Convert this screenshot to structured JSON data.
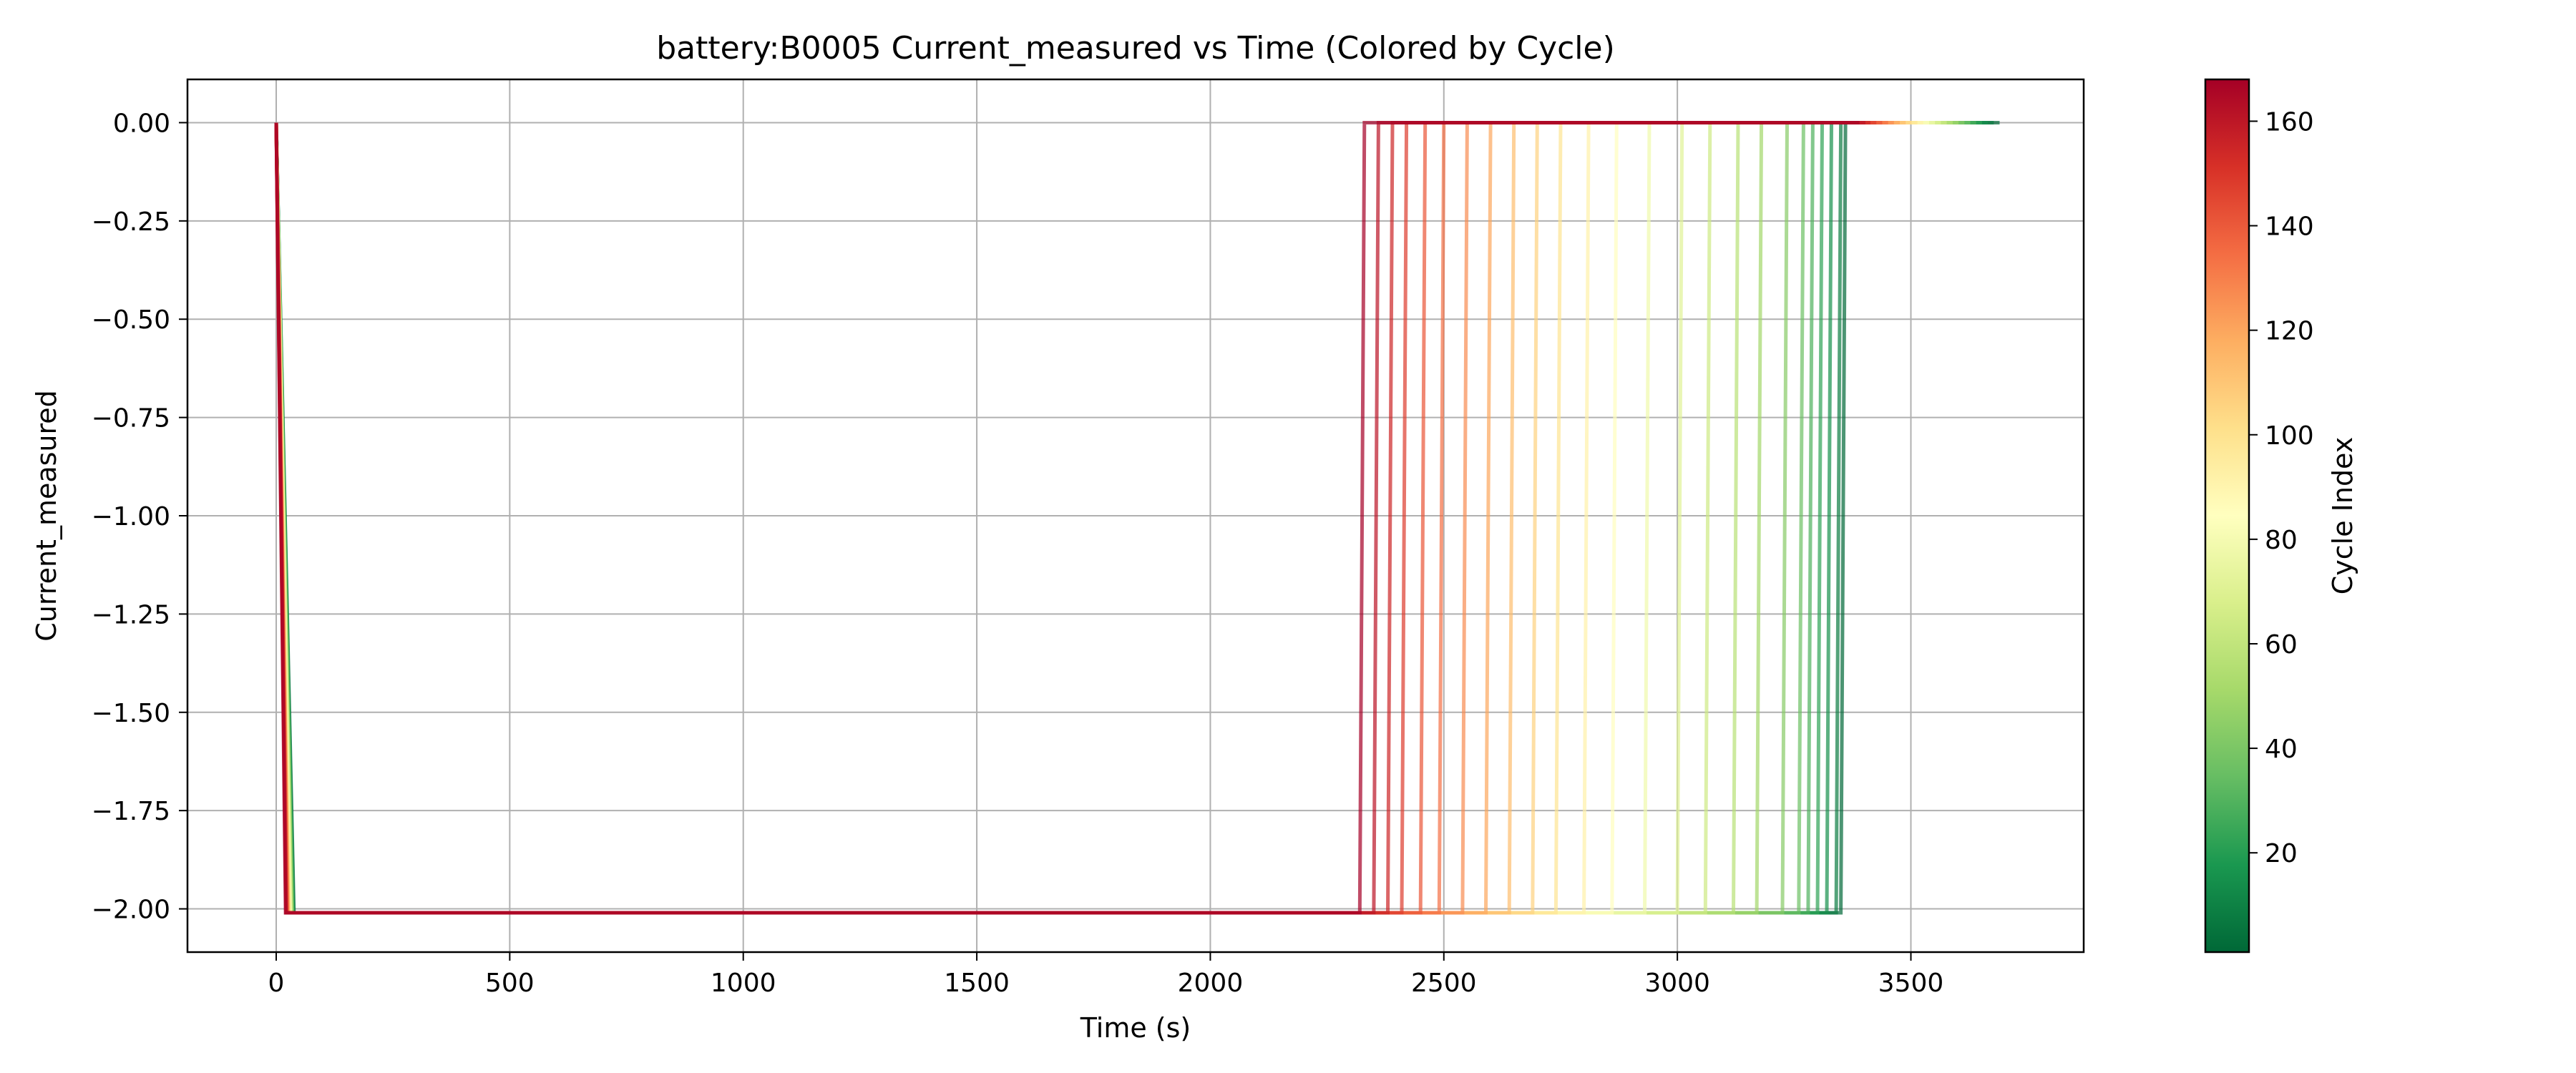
{
  "chart_data": {
    "type": "line",
    "title": "battery:B0005 Current_measured vs Time (Colored by Cycle)",
    "xlabel": "Time (s)",
    "ylabel": "Current_measured",
    "xlim": [
      -190,
      3870
    ],
    "ylim": [
      -2.11,
      0.11
    ],
    "xticks": [
      0,
      500,
      1000,
      1500,
      2000,
      2500,
      3000,
      3500
    ],
    "yticks": [
      0.0,
      -0.25,
      -0.5,
      -0.75,
      -1.0,
      -1.25,
      -1.5,
      -1.75,
      -2.0
    ],
    "xtick_labels": [
      "0",
      "500",
      "1000",
      "1500",
      "2000",
      "2500",
      "3000",
      "3500"
    ],
    "ytick_labels": [
      "0.00",
      "−0.25",
      "−0.50",
      "−0.75",
      "−1.00",
      "−1.25",
      "−1.50",
      "−1.75",
      "−2.00"
    ],
    "grid": true,
    "colorbar": {
      "label": "Cycle Index",
      "min": 1,
      "max": 168,
      "ticks": [
        20,
        40,
        60,
        80,
        100,
        120,
        140,
        160
      ],
      "tick_labels": [
        "20",
        "40",
        "60",
        "80",
        "100",
        "120",
        "140",
        "160"
      ],
      "colormap": "RdYlGn_r",
      "colors": [
        "#006837",
        "#1a9850",
        "#66bd63",
        "#a6d96a",
        "#d9ef8b",
        "#ffffbf",
        "#fee08b",
        "#fdae61",
        "#f46d43",
        "#d73027",
        "#a50026"
      ]
    },
    "series_profile": {
      "start_time": 0,
      "start_current": 0.0,
      "ramp_end_time": 20,
      "discharge_current": -2.01,
      "recovery_current": 0.0,
      "end_time": 3690
    },
    "series": [
      {
        "cycle": 1,
        "discharge_end_time": 3350
      },
      {
        "cycle": 8,
        "discharge_end_time": 3340
      },
      {
        "cycle": 15,
        "discharge_end_time": 3320
      },
      {
        "cycle": 22,
        "discharge_end_time": 3300
      },
      {
        "cycle": 29,
        "discharge_end_time": 3280
      },
      {
        "cycle": 36,
        "discharge_end_time": 3260
      },
      {
        "cycle": 43,
        "discharge_end_time": 3225
      },
      {
        "cycle": 50,
        "discharge_end_time": 3170
      },
      {
        "cycle": 57,
        "discharge_end_time": 3120
      },
      {
        "cycle": 64,
        "discharge_end_time": 3060
      },
      {
        "cycle": 71,
        "discharge_end_time": 3000
      },
      {
        "cycle": 78,
        "discharge_end_time": 2930
      },
      {
        "cycle": 85,
        "discharge_end_time": 2860
      },
      {
        "cycle": 92,
        "discharge_end_time": 2800
      },
      {
        "cycle": 99,
        "discharge_end_time": 2740
      },
      {
        "cycle": 106,
        "discharge_end_time": 2690
      },
      {
        "cycle": 113,
        "discharge_end_time": 2640
      },
      {
        "cycle": 120,
        "discharge_end_time": 2590
      },
      {
        "cycle": 127,
        "discharge_end_time": 2540
      },
      {
        "cycle": 134,
        "discharge_end_time": 2490
      },
      {
        "cycle": 141,
        "discharge_end_time": 2450
      },
      {
        "cycle": 148,
        "discharge_end_time": 2410
      },
      {
        "cycle": 155,
        "discharge_end_time": 2380
      },
      {
        "cycle": 161,
        "discharge_end_time": 2350
      },
      {
        "cycle": 168,
        "discharge_end_time": 2320
      }
    ]
  }
}
